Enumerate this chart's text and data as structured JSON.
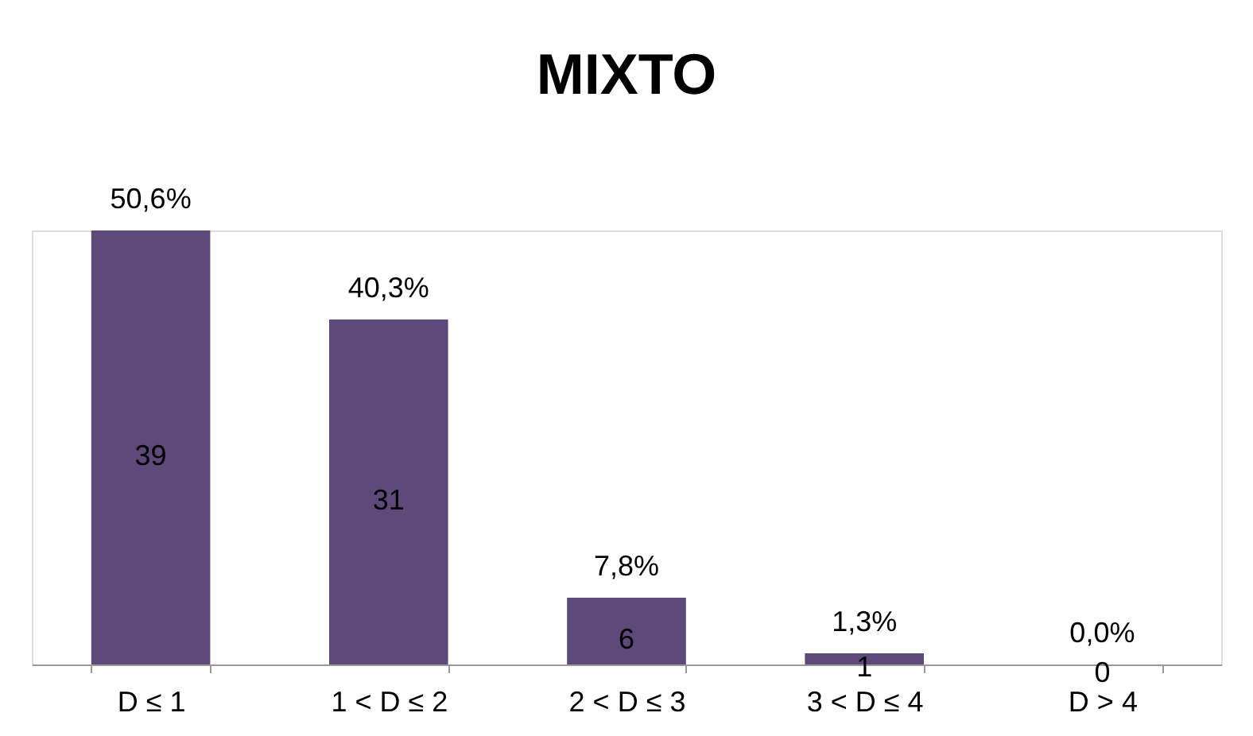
{
  "chart_data": {
    "type": "bar",
    "title": "MIXTO",
    "categories": [
      "D ≤ 1",
      "1 < D ≤ 2",
      "2 < D ≤ 3",
      "3 < D ≤ 4",
      "D > 4"
    ],
    "values": [
      39,
      31,
      6,
      1,
      0
    ],
    "color": "#5e4a7a",
    "value_labels": [
      "39",
      "31",
      "6",
      "1",
      "0"
    ],
    "annotations": [
      {
        "text": "50,6%",
        "x": "D ≤ 1",
        "y": 39
      },
      {
        "text": "40,3%",
        "x": "1 < D ≤ 2",
        "y": 31
      },
      {
        "text": "7,8%",
        "x": "2 < D ≤ 3",
        "y": 6
      },
      {
        "text": "1,3%",
        "x": "3 < D ≤ 4",
        "y": 1
      },
      {
        "text": "0,0%",
        "x": "D > 4",
        "y": 0
      }
    ]
  }
}
